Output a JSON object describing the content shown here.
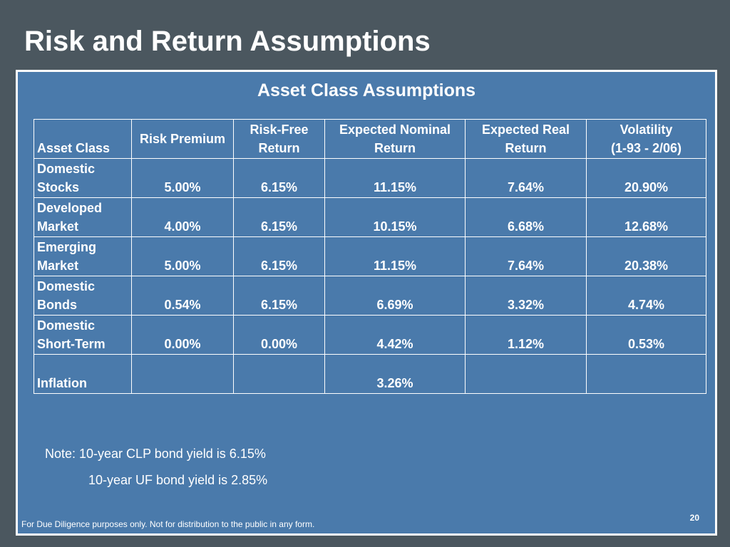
{
  "slide": {
    "title": "Risk and Return Assumptions",
    "panel_title": "Asset Class Assumptions",
    "page_number": "20",
    "disclaimer": "For Due Diligence purposes only. Not for distribution to the public in any form."
  },
  "table": {
    "headers": {
      "asset_class": "Asset Class",
      "risk_premium": "Risk Premium",
      "risk_free_line1": "Risk-Free",
      "risk_free_line2": "Return",
      "nominal_line1": "Expected Nominal",
      "nominal_line2": "Return",
      "real_line1": "Expected Real",
      "real_line2": "Return",
      "volatility_line1": "Volatility",
      "volatility_line2": "(1-93 - 2/06)"
    },
    "rows": [
      {
        "name1": "Domestic",
        "name2": "Stocks",
        "risk_premium": "5.00%",
        "risk_free": "6.15%",
        "nominal": "11.15%",
        "real": "7.64%",
        "volatility": "20.90%"
      },
      {
        "name1": "Developed",
        "name2": "Market",
        "risk_premium": "4.00%",
        "risk_free": "6.15%",
        "nominal": "10.15%",
        "real": "6.68%",
        "volatility": "12.68%"
      },
      {
        "name1": "Emerging",
        "name2": "Market",
        "risk_premium": "5.00%",
        "risk_free": "6.15%",
        "nominal": "11.15%",
        "real": "7.64%",
        "volatility": "20.38%"
      },
      {
        "name1": "Domestic",
        "name2": "Bonds",
        "risk_premium": "0.54%",
        "risk_free": "6.15%",
        "nominal": "6.69%",
        "real": "3.32%",
        "volatility": "4.74%"
      },
      {
        "name1": "Domestic",
        "name2": "Short-Term",
        "risk_premium": "0.00%",
        "risk_free": "0.00%",
        "nominal": "4.42%",
        "real": "1.12%",
        "volatility": "0.53%"
      },
      {
        "name1": "",
        "name2": "Inflation",
        "risk_premium": "",
        "risk_free": "",
        "nominal": "3.26%",
        "real": "",
        "volatility": ""
      }
    ]
  },
  "note": {
    "line1": "Note:  10-year CLP bond yield is 6.15%",
    "line2": "10-year UF bond yield is 2.85%"
  }
}
